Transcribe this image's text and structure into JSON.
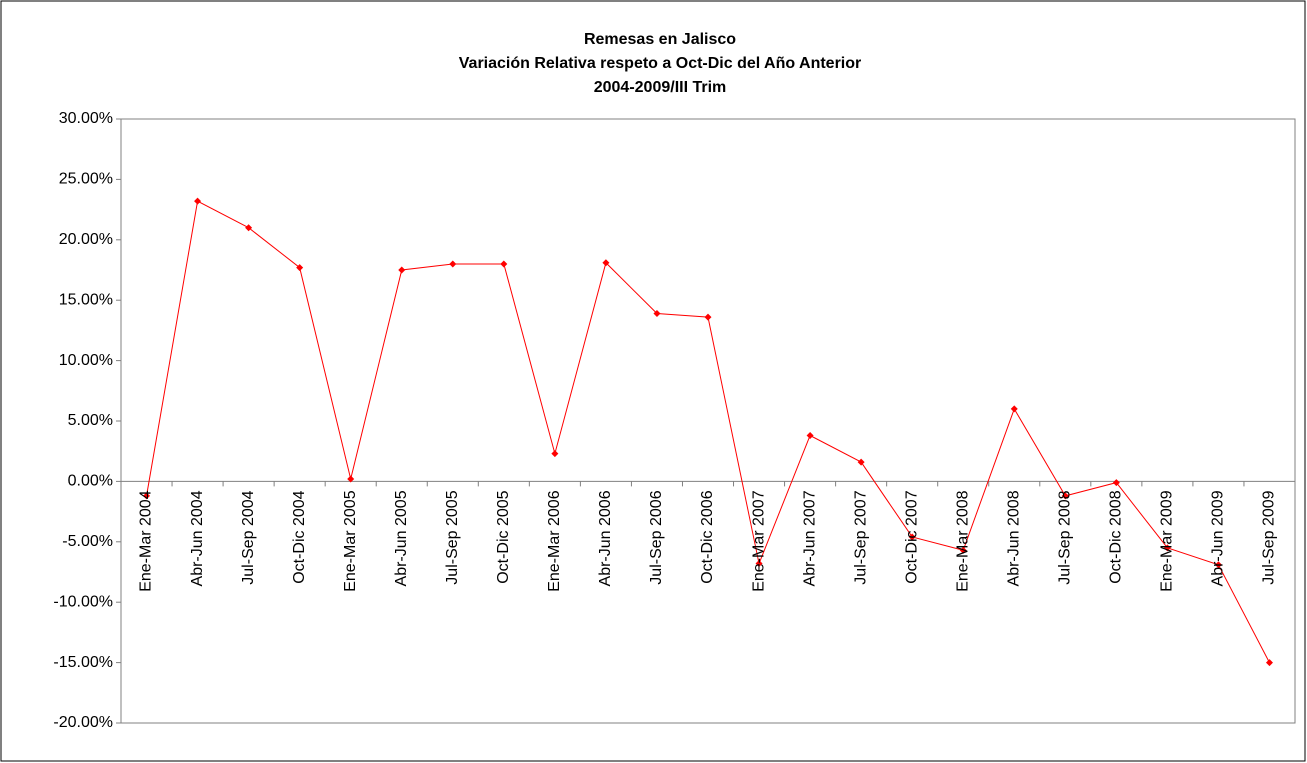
{
  "chart_data": {
    "type": "line",
    "title": [
      "Remesas en Jalisco",
      "Variación Relativa respeto a Oct-Dic del Año Anterior",
      "2004-2009/III Trim"
    ],
    "categories": [
      "Ene-Mar 2004",
      "Abr-Jun 2004",
      "Jul-Sep 2004",
      "Oct-Dic 2004",
      "Ene-Mar 2005",
      "Abr-Jun 2005",
      "Jul-Sep 2005",
      "Oct-Dic 2005",
      "Ene-Mar 2006",
      "Abr-Jun 2006",
      "Jul-Sep 2006",
      "Oct-Dic 2006",
      "Ene-Mar 2007",
      "Abr-Jun 2007",
      "Jul-Sep 2007",
      "Oct-Dic 2007",
      "Ene-Mar 2008",
      "Abr-Jun 2008",
      "Jul-Sep 2008",
      "Oct-Dic 2008",
      "Ene-Mar 2009",
      "Abr-Jun 2009",
      "Jul-Sep 2009"
    ],
    "values": [
      -1.2,
      23.2,
      21.0,
      17.7,
      0.2,
      17.5,
      18.0,
      18.0,
      2.3,
      18.1,
      13.9,
      13.6,
      -6.8,
      3.8,
      1.6,
      -4.6,
      -5.7,
      6.0,
      -1.2,
      -0.1,
      -5.5,
      -6.9,
      -15.0
    ],
    "color": "#ff0000",
    "ylim": [
      -20,
      30
    ],
    "yticks": [
      {
        "value": -20,
        "label": "-20.00%"
      },
      {
        "value": -15,
        "label": "-15.00%"
      },
      {
        "value": -10,
        "label": "-10.00%"
      },
      {
        "value": -5,
        "label": "-5.00%"
      },
      {
        "value": 0,
        "label": "0.00%"
      },
      {
        "value": 5,
        "label": "5.00%"
      },
      {
        "value": 10,
        "label": "10.00%"
      },
      {
        "value": 15,
        "label": "15.00%"
      },
      {
        "value": 20,
        "label": "20.00%"
      },
      {
        "value": 25,
        "label": "25.00%"
      },
      {
        "value": 30,
        "label": "30.00%"
      }
    ],
    "grid": false
  }
}
